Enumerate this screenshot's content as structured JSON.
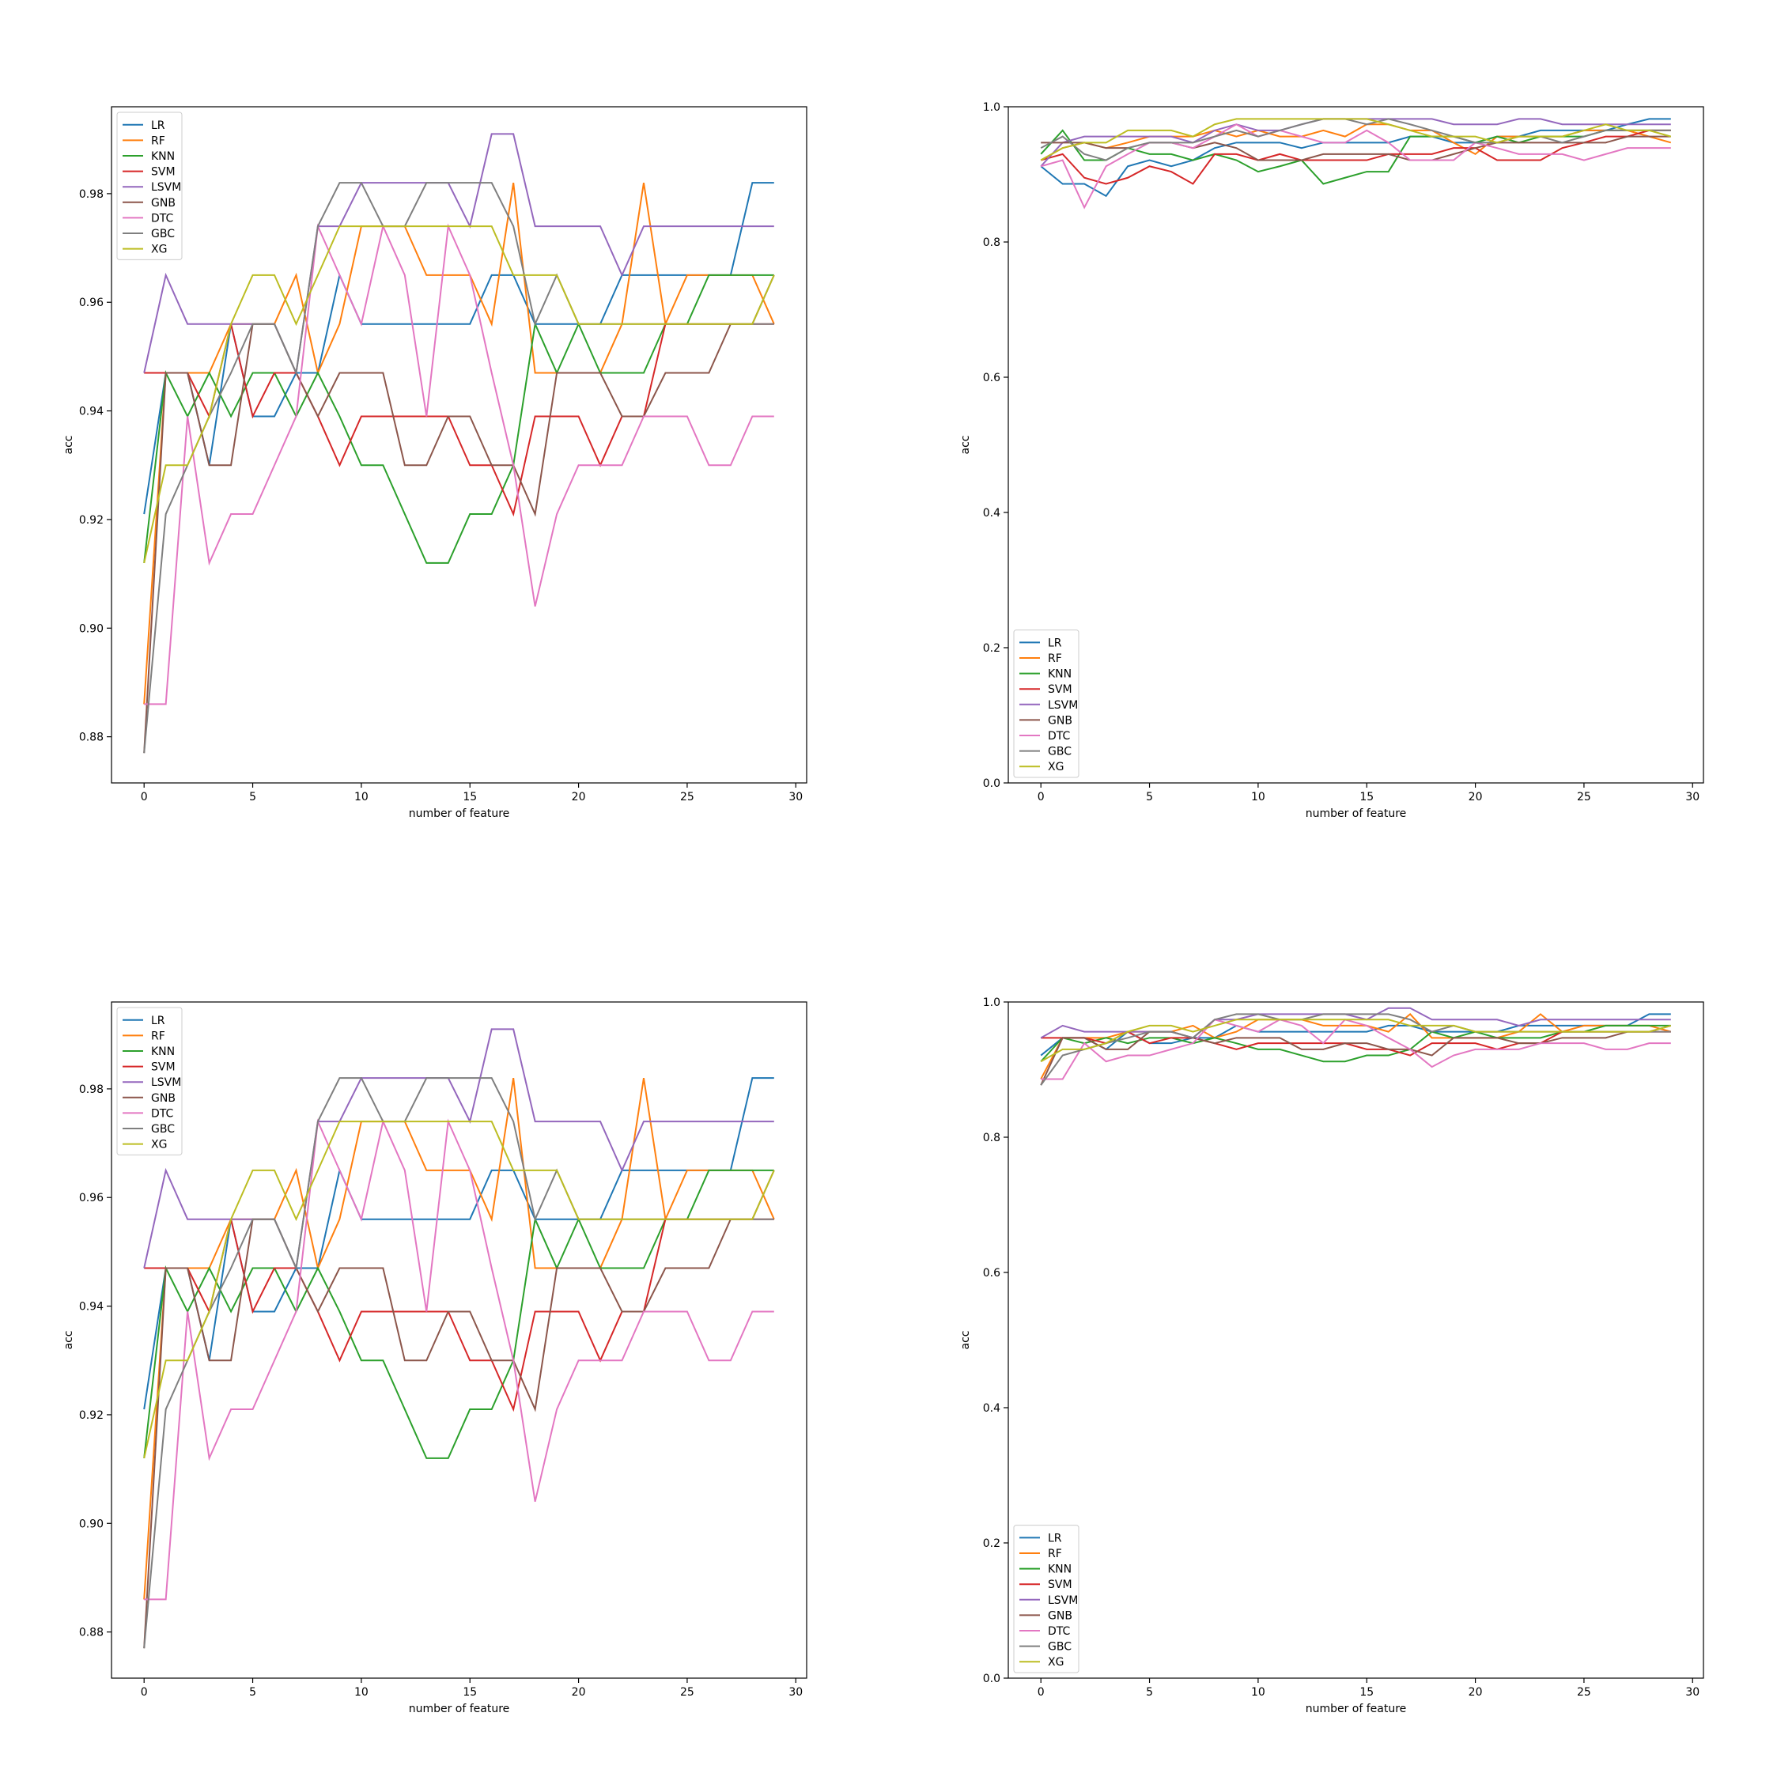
{
  "colors": {
    "LR": "#1f77b4",
    "RF": "#ff7f0e",
    "KNN": "#2ca02c",
    "SVM": "#d62728",
    "LSVM": "#9467bd",
    "GNB": "#8c564b",
    "DTC": "#e377c2",
    "GBC": "#7f7f7f",
    "XG": "#bcbd22"
  },
  "chart_data": [
    {
      "type": "line",
      "xlabel": "number of feature",
      "ylabel": "acc",
      "xlim": [
        -1.5,
        30.5
      ],
      "ylim": [
        0.8715,
        0.996
      ],
      "xticks": [
        0,
        5,
        10,
        15,
        20,
        25,
        30
      ],
      "yticks": [
        0.88,
        0.9,
        0.92,
        0.94,
        0.96,
        0.98
      ],
      "ytick_labels": [
        "0.88",
        "0.90",
        "0.92",
        "0.94",
        "0.96",
        "0.98"
      ],
      "legend": "top-left",
      "grid": false,
      "series_ref": "zoomed"
    },
    {
      "type": "line",
      "xlabel": "number of feature",
      "ylabel": "acc",
      "xlim": [
        -1.5,
        30.5
      ],
      "ylim": [
        0.0,
        1.0
      ],
      "xticks": [
        0,
        5,
        10,
        15,
        20,
        25,
        30
      ],
      "yticks": [
        0.0,
        0.2,
        0.4,
        0.6,
        0.8,
        1.0
      ],
      "ytick_labels": [
        "0.0",
        "0.2",
        "0.4",
        "0.6",
        "0.8",
        "1.0"
      ],
      "legend": "bottom-left",
      "grid": false,
      "series_ref": "full_a"
    },
    {
      "type": "line",
      "xlabel": "number of feature",
      "ylabel": "acc",
      "xlim": [
        -1.5,
        30.5
      ],
      "ylim": [
        0.8715,
        0.996
      ],
      "xticks": [
        0,
        5,
        10,
        15,
        20,
        25,
        30
      ],
      "yticks": [
        0.88,
        0.9,
        0.92,
        0.94,
        0.96,
        0.98
      ],
      "ytick_labels": [
        "0.88",
        "0.90",
        "0.92",
        "0.94",
        "0.96",
        "0.98"
      ],
      "legend": "top-left",
      "grid": false,
      "series_ref": "zoomed"
    },
    {
      "type": "line",
      "xlabel": "number of feature",
      "ylabel": "acc",
      "xlim": [
        -1.5,
        30.5
      ],
      "ylim": [
        0.0,
        1.0
      ],
      "xticks": [
        0,
        5,
        10,
        15,
        20,
        25,
        30
      ],
      "yticks": [
        0.0,
        0.2,
        0.4,
        0.6,
        0.8,
        1.0
      ],
      "ytick_labels": [
        "0.0",
        "0.2",
        "0.4",
        "0.6",
        "0.8",
        "1.0"
      ],
      "legend": "bottom-left",
      "grid": false,
      "series_ref": "zoomed"
    }
  ],
  "series_sets": {
    "zoomed": [
      {
        "name": "LR",
        "values": [
          0.921,
          0.947,
          0.947,
          0.93,
          0.956,
          0.939,
          0.939,
          0.947,
          0.947,
          0.965,
          0.956,
          0.956,
          0.956,
          0.956,
          0.956,
          0.956,
          0.965,
          0.965,
          0.956,
          0.956,
          0.956,
          0.956,
          0.965,
          0.965,
          0.965,
          0.965,
          0.965,
          0.965,
          0.982,
          0.982
        ]
      },
      {
        "name": "RF",
        "values": [
          0.886,
          0.947,
          0.947,
          0.947,
          0.956,
          0.956,
          0.956,
          0.965,
          0.947,
          0.956,
          0.974,
          0.974,
          0.974,
          0.965,
          0.965,
          0.965,
          0.956,
          0.982,
          0.947,
          0.947,
          0.947,
          0.947,
          0.956,
          0.982,
          0.956,
          0.965,
          0.965,
          0.965,
          0.965,
          0.956
        ]
      },
      {
        "name": "KNN",
        "values": [
          0.912,
          0.947,
          0.939,
          0.947,
          0.939,
          0.947,
          0.947,
          0.939,
          0.947,
          0.939,
          0.93,
          0.93,
          0.921,
          0.912,
          0.912,
          0.921,
          0.921,
          0.93,
          0.956,
          0.947,
          0.956,
          0.947,
          0.947,
          0.947,
          0.956,
          0.956,
          0.965,
          0.965,
          0.965,
          0.965
        ]
      },
      {
        "name": "SVM",
        "values": [
          0.947,
          0.947,
          0.947,
          0.939,
          0.956,
          0.939,
          0.947,
          0.947,
          0.939,
          0.93,
          0.939,
          0.939,
          0.939,
          0.939,
          0.939,
          0.93,
          0.93,
          0.921,
          0.939,
          0.939,
          0.939,
          0.93,
          0.939,
          0.939,
          0.956,
          0.956,
          0.956,
          0.956,
          0.956,
          0.956
        ]
      },
      {
        "name": "LSVM",
        "values": [
          0.947,
          0.965,
          0.956,
          0.956,
          0.956,
          0.956,
          0.956,
          0.947,
          0.974,
          0.974,
          0.982,
          0.982,
          0.982,
          0.982,
          0.982,
          0.974,
          0.991,
          0.991,
          0.974,
          0.974,
          0.974,
          0.974,
          0.965,
          0.974,
          0.974,
          0.974,
          0.974,
          0.974,
          0.974,
          0.974
        ]
      },
      {
        "name": "GNB",
        "values": [
          0.877,
          0.947,
          0.947,
          0.93,
          0.93,
          0.956,
          0.956,
          0.947,
          0.939,
          0.947,
          0.947,
          0.947,
          0.93,
          0.93,
          0.939,
          0.939,
          0.93,
          0.93,
          0.921,
          0.947,
          0.947,
          0.947,
          0.939,
          0.939,
          0.947,
          0.947,
          0.947,
          0.956,
          0.956,
          0.965
        ]
      },
      {
        "name": "DTC",
        "values": [
          0.886,
          0.886,
          0.939,
          0.912,
          0.921,
          0.921,
          0.93,
          0.939,
          0.974,
          0.965,
          0.956,
          0.974,
          0.965,
          0.939,
          0.974,
          0.965,
          0.947,
          0.93,
          0.904,
          0.921,
          0.93,
          0.93,
          0.93,
          0.939,
          0.939,
          0.939,
          0.93,
          0.93,
          0.939,
          0.939
        ]
      },
      {
        "name": "GBC",
        "values": [
          0.877,
          0.921,
          0.93,
          0.939,
          0.947,
          0.956,
          0.956,
          0.947,
          0.974,
          0.982,
          0.982,
          0.974,
          0.974,
          0.982,
          0.982,
          0.982,
          0.982,
          0.974,
          0.956,
          0.965,
          0.956,
          0.956,
          0.956,
          0.956,
          0.956,
          0.956,
          0.956,
          0.956,
          0.956,
          0.956
        ]
      },
      {
        "name": "XG",
        "values": [
          0.912,
          0.93,
          0.93,
          0.939,
          0.956,
          0.965,
          0.965,
          0.956,
          0.965,
          0.974,
          0.974,
          0.974,
          0.974,
          0.974,
          0.974,
          0.974,
          0.974,
          0.965,
          0.965,
          0.965,
          0.956,
          0.956,
          0.956,
          0.956,
          0.956,
          0.956,
          0.956,
          0.956,
          0.956,
          0.965
        ]
      }
    ],
    "full_a": [
      {
        "name": "LR",
        "values": [
          0.912,
          0.886,
          0.886,
          0.868,
          0.912,
          0.921,
          0.912,
          0.921,
          0.939,
          0.947,
          0.947,
          0.947,
          0.939,
          0.947,
          0.947,
          0.947,
          0.947,
          0.956,
          0.956,
          0.947,
          0.947,
          0.956,
          0.956,
          0.965,
          0.965,
          0.965,
          0.965,
          0.974,
          0.982,
          0.982
        ]
      },
      {
        "name": "RF",
        "values": [
          0.921,
          0.939,
          0.947,
          0.939,
          0.947,
          0.956,
          0.956,
          0.956,
          0.965,
          0.956,
          0.965,
          0.956,
          0.956,
          0.965,
          0.956,
          0.974,
          0.974,
          0.965,
          0.965,
          0.947,
          0.93,
          0.956,
          0.956,
          0.956,
          0.956,
          0.965,
          0.965,
          0.965,
          0.956,
          0.947
        ]
      },
      {
        "name": "KNN",
        "values": [
          0.93,
          0.965,
          0.921,
          0.921,
          0.939,
          0.93,
          0.93,
          0.921,
          0.93,
          0.921,
          0.904,
          0.912,
          0.921,
          0.886,
          0.895,
          0.904,
          0.904,
          0.956,
          0.956,
          0.956,
          0.947,
          0.956,
          0.947,
          0.956,
          0.956,
          0.956,
          0.965,
          0.965,
          0.965,
          0.965
        ]
      },
      {
        "name": "SVM",
        "values": [
          0.921,
          0.93,
          0.895,
          0.886,
          0.895,
          0.912,
          0.904,
          0.886,
          0.93,
          0.93,
          0.921,
          0.93,
          0.921,
          0.921,
          0.921,
          0.921,
          0.93,
          0.93,
          0.93,
          0.939,
          0.939,
          0.921,
          0.921,
          0.921,
          0.939,
          0.947,
          0.956,
          0.956,
          0.965,
          0.965
        ]
      },
      {
        "name": "LSVM",
        "values": [
          0.912,
          0.947,
          0.956,
          0.956,
          0.956,
          0.956,
          0.956,
          0.947,
          0.965,
          0.974,
          0.965,
          0.965,
          0.974,
          0.982,
          0.982,
          0.982,
          0.982,
          0.982,
          0.982,
          0.974,
          0.974,
          0.974,
          0.982,
          0.982,
          0.974,
          0.974,
          0.974,
          0.974,
          0.974,
          0.974
        ]
      },
      {
        "name": "GNB",
        "values": [
          0.947,
          0.947,
          0.947,
          0.939,
          0.939,
          0.947,
          0.947,
          0.939,
          0.947,
          0.939,
          0.921,
          0.921,
          0.921,
          0.93,
          0.93,
          0.93,
          0.93,
          0.921,
          0.921,
          0.93,
          0.939,
          0.947,
          0.947,
          0.947,
          0.947,
          0.947,
          0.947,
          0.956,
          0.956,
          0.956
        ]
      },
      {
        "name": "DTC",
        "values": [
          0.912,
          0.921,
          0.851,
          0.912,
          0.93,
          0.947,
          0.947,
          0.939,
          0.956,
          0.974,
          0.956,
          0.965,
          0.956,
          0.947,
          0.947,
          0.965,
          0.947,
          0.921,
          0.921,
          0.921,
          0.947,
          0.939,
          0.93,
          0.93,
          0.93,
          0.921,
          0.93,
          0.939,
          0.939,
          0.939
        ]
      },
      {
        "name": "GBC",
        "values": [
          0.939,
          0.956,
          0.93,
          0.921,
          0.939,
          0.947,
          0.947,
          0.947,
          0.956,
          0.965,
          0.956,
          0.965,
          0.974,
          0.982,
          0.982,
          0.974,
          0.982,
          0.974,
          0.965,
          0.956,
          0.947,
          0.947,
          0.956,
          0.956,
          0.947,
          0.956,
          0.965,
          0.965,
          0.965,
          0.965
        ]
      },
      {
        "name": "XG",
        "values": [
          0.921,
          0.939,
          0.947,
          0.947,
          0.965,
          0.965,
          0.965,
          0.956,
          0.974,
          0.982,
          0.982,
          0.982,
          0.982,
          0.982,
          0.982,
          0.982,
          0.974,
          0.965,
          0.956,
          0.956,
          0.956,
          0.947,
          0.956,
          0.956,
          0.956,
          0.965,
          0.974,
          0.965,
          0.965,
          0.956
        ]
      }
    ]
  }
}
